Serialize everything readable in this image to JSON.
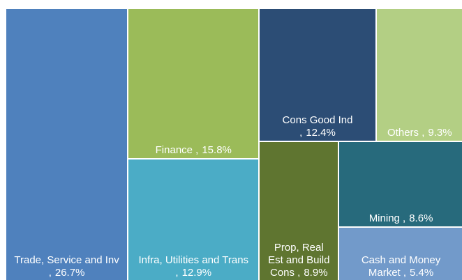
{
  "chart_data": {
    "type": "treemap",
    "categories": [
      "Trade, Service and Inv ,",
      "Finance ,",
      "Infra, Utilities and Trans ,",
      "Cons Good Ind ,",
      "Others ,",
      "Prop, Real Est and Build Cons ,",
      "Mining ,",
      "Cash and Money Market ,"
    ],
    "values": [
      26.7,
      15.8,
      12.9,
      12.4,
      9.3,
      8.9,
      8.6,
      5.4
    ],
    "value_labels": [
      "26.7%",
      "15.8%",
      "12.9%",
      "12.4%",
      "9.3%",
      "8.9%",
      "8.6%",
      "5.4%"
    ],
    "colors": [
      "#4f81bd",
      "#9bbb59",
      "#4bacc6",
      "#2c4d75",
      "#b3cf84",
      "#5f7530",
      "#276a7c",
      "#729aca"
    ]
  }
}
